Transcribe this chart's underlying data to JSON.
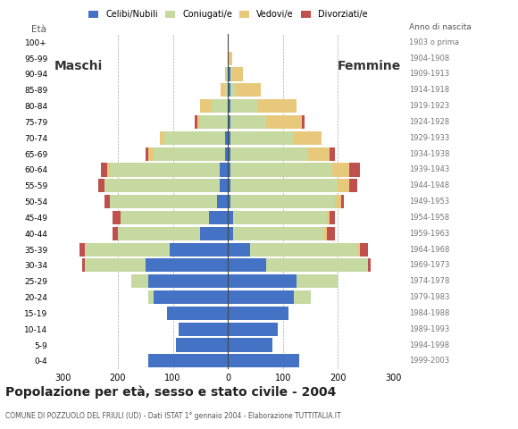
{
  "age_groups": [
    "0-4",
    "5-9",
    "10-14",
    "15-19",
    "20-24",
    "25-29",
    "30-34",
    "35-39",
    "40-44",
    "45-49",
    "50-54",
    "55-59",
    "60-64",
    "65-69",
    "70-74",
    "75-79",
    "80-84",
    "85-89",
    "90-94",
    "95-99",
    "100+"
  ],
  "birth_years": [
    "1999-2003",
    "1994-1998",
    "1989-1993",
    "1984-1988",
    "1979-1983",
    "1974-1978",
    "1969-1973",
    "1964-1968",
    "1959-1963",
    "1954-1958",
    "1949-1953",
    "1944-1948",
    "1939-1943",
    "1934-1938",
    "1929-1933",
    "1924-1928",
    "1919-1923",
    "1914-1918",
    "1909-1913",
    "1904-1908",
    "1903 o prima"
  ],
  "males": {
    "celibe": [
      145,
      95,
      90,
      110,
      135,
      145,
      150,
      105,
      50,
      35,
      20,
      15,
      15,
      5,
      5,
      0,
      0,
      0,
      0,
      0,
      0
    ],
    "coniugato": [
      0,
      0,
      0,
      0,
      10,
      30,
      110,
      155,
      150,
      160,
      195,
      210,
      200,
      130,
      110,
      50,
      30,
      5,
      3,
      0,
      0
    ],
    "vedovo": [
      0,
      0,
      0,
      0,
      0,
      0,
      0,
      0,
      0,
      0,
      0,
      0,
      5,
      10,
      8,
      5,
      20,
      8,
      2,
      0,
      0
    ],
    "divorziato": [
      0,
      0,
      0,
      0,
      0,
      0,
      5,
      10,
      10,
      15,
      10,
      10,
      10,
      5,
      0,
      5,
      0,
      0,
      0,
      0,
      0
    ]
  },
  "females": {
    "nubile": [
      130,
      80,
      90,
      110,
      120,
      125,
      70,
      40,
      10,
      10,
      5,
      5,
      5,
      5,
      5,
      5,
      5,
      5,
      5,
      2,
      0
    ],
    "coniugata": [
      0,
      0,
      0,
      0,
      30,
      75,
      185,
      195,
      165,
      170,
      190,
      195,
      185,
      140,
      115,
      65,
      50,
      10,
      3,
      0,
      0
    ],
    "vedova": [
      0,
      0,
      0,
      0,
      0,
      0,
      0,
      5,
      5,
      5,
      10,
      20,
      30,
      40,
      50,
      65,
      70,
      45,
      20,
      5,
      2
    ],
    "divorziata": [
      0,
      0,
      0,
      0,
      0,
      0,
      5,
      15,
      15,
      10,
      5,
      15,
      20,
      10,
      0,
      5,
      0,
      0,
      0,
      0,
      0
    ]
  },
  "colors": {
    "celibe_nubile": "#4472C4",
    "coniugato_a": "#C5D9A0",
    "vedovo_a": "#E8C87A",
    "divorziato_a": "#C0504D"
  },
  "xlim": 320,
  "title": "Popolazione per età, sesso e stato civile - 2004",
  "subtitle": "COMUNE DI POZZUOLO DEL FRIULI (UD) - Dati ISTAT 1° gennaio 2004 - Elaborazione TUTTITALIA.IT",
  "label_eta": "Età",
  "label_maschi": "Maschi",
  "label_femmine": "Femmine",
  "label_anno": "Anno di nascita",
  "legend_labels": [
    "Celibi/Nubili",
    "Coniugati/e",
    "Vedovi/e",
    "Divorziati/e"
  ],
  "background_color": "#FFFFFF",
  "grid_color": "#AAAAAA"
}
